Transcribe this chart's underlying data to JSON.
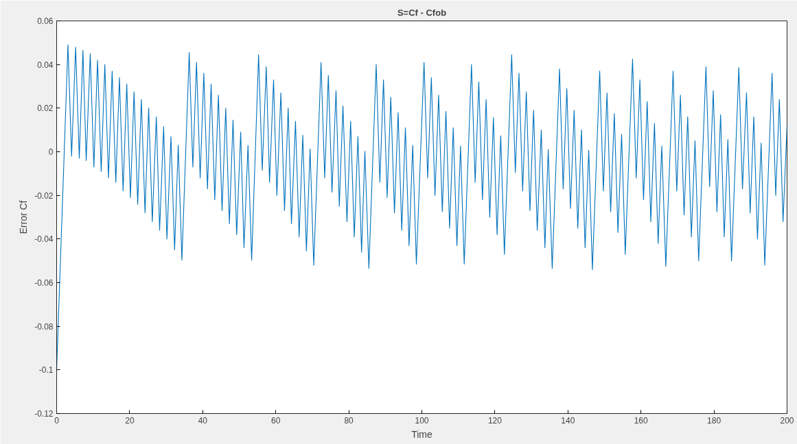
{
  "chart_data": {
    "type": "line",
    "title": "S=Cf - Cfob",
    "xlabel": "Time",
    "ylabel": "Error Cf",
    "xlim": [
      0,
      200
    ],
    "xticks": [
      0,
      20,
      40,
      60,
      80,
      100,
      120,
      140,
      160,
      180,
      200
    ],
    "ylim": [
      -0.12,
      0.06
    ],
    "yticks": [
      -0.12,
      -0.1,
      -0.08,
      -0.06,
      -0.04,
      -0.02,
      0,
      0.02,
      0.04,
      0.06
    ],
    "grid": false,
    "marker": "none",
    "line_style": "solid",
    "series": [
      {
        "color": "#0072bd",
        "x": [
          0,
          3.1,
          4.1,
          5.2,
          6.2,
          7.2,
          8.1,
          9.2,
          10.2,
          11.2,
          12.2,
          13.2,
          14.2,
          15.2,
          16.2,
          17.2,
          18.2,
          19.2,
          20.2,
          21.2,
          22.2,
          23.2,
          24.2,
          25.2,
          26.2,
          27.3,
          28.2,
          29.3,
          30.2,
          31.3,
          32.3,
          33.3,
          34.3,
          36.3,
          37.3,
          38.3,
          39.3,
          40.3,
          41.3,
          42.3,
          43.3,
          44.3,
          45.3,
          46.3,
          47.3,
          48.3,
          49.3,
          50.4,
          51.3,
          52.4,
          53.4,
          55.3,
          56.3,
          57.4,
          58.3,
          59.4,
          60.3,
          61.4,
          62.4,
          63.4,
          64.3,
          65.4,
          66.4,
          67.4,
          68.4,
          69.4,
          70.4,
          72.4,
          73.4,
          74.4,
          75.4,
          76.5,
          77.4,
          78.4,
          79.5,
          80.5,
          81.5,
          82.5,
          83.5,
          84.4,
          85.5,
          87.5,
          88.5,
          89.5,
          90.5,
          91.5,
          92.5,
          93.5,
          94.5,
          95.5,
          96.5,
          97.5,
          98.5,
          100.6,
          101.6,
          102.6,
          103.6,
          104.6,
          105.6,
          106.6,
          107.6,
          108.6,
          109.6,
          110.6,
          111.6,
          113.6,
          114.6,
          115.6,
          116.6,
          117.6,
          118.6,
          119.6,
          120.6,
          121.6,
          122.6,
          124.6,
          125.6,
          126.6,
          127.6,
          128.6,
          129.6,
          130.6,
          131.6,
          132.7,
          133.7,
          134.6,
          135.7,
          137.7,
          138.7,
          139.7,
          140.7,
          141.7,
          142.7,
          143.7,
          144.7,
          145.7,
          146.7,
          148.7,
          149.7,
          150.7,
          151.7,
          152.7,
          153.7,
          154.7,
          155.7,
          157.7,
          158.7,
          159.7,
          160.7,
          161.7,
          162.7,
          163.7,
          164.7,
          165.7,
          166.8,
          168.8,
          169.8,
          170.8,
          171.8,
          172.8,
          173.8,
          174.8,
          175.8,
          177.8,
          178.8,
          179.8,
          180.8,
          181.8,
          182.8,
          183.8,
          184.8,
          186.8,
          187.8,
          188.9,
          189.9,
          190.9,
          191.9,
          192.9,
          193.9,
          195.9,
          196.9,
          197.9,
          198.9,
          200
        ],
        "values": [
          -0.1,
          0.049,
          -0.002,
          0.048,
          -0.003,
          0.0465,
          -0.004,
          0.045,
          -0.007,
          0.042,
          -0.009,
          0.04,
          -0.012,
          0.037,
          -0.014,
          0.034,
          -0.018,
          0.031,
          -0.021,
          0.0275,
          -0.024,
          0.024,
          -0.028,
          0.02,
          -0.032,
          0.016,
          -0.036,
          0.0115,
          -0.04,
          0.007,
          -0.045,
          0.003,
          -0.0497,
          0.0455,
          -0.007,
          0.041,
          -0.012,
          0.036,
          -0.017,
          0.031,
          -0.022,
          0.026,
          -0.027,
          0.02,
          -0.033,
          0.0145,
          -0.038,
          0.009,
          -0.044,
          0.003,
          -0.0497,
          0.0445,
          -0.0085,
          0.039,
          -0.014,
          0.033,
          -0.02,
          0.027,
          -0.027,
          0.02,
          -0.033,
          0.014,
          -0.039,
          0.0076,
          -0.0455,
          0.0013,
          -0.052,
          0.041,
          -0.012,
          0.035,
          -0.0185,
          0.028,
          -0.025,
          0.021,
          -0.032,
          0.014,
          -0.039,
          0.007,
          -0.046,
          0.0002,
          -0.0535,
          0.04,
          -0.014,
          0.033,
          -0.021,
          0.025,
          -0.028,
          0.018,
          -0.036,
          0.011,
          -0.043,
          0.003,
          -0.0515,
          0.041,
          -0.012,
          0.034,
          -0.02,
          0.026,
          -0.0275,
          0.0185,
          -0.035,
          0.011,
          -0.043,
          0.0026,
          -0.0515,
          0.04,
          -0.014,
          0.032,
          -0.022,
          0.024,
          -0.03,
          0.0156,
          -0.038,
          0.0074,
          -0.047,
          0.0445,
          -0.0095,
          0.036,
          -0.018,
          0.0275,
          -0.027,
          0.019,
          -0.036,
          0.01,
          -0.044,
          0.001,
          -0.0535,
          0.038,
          -0.017,
          0.029,
          -0.026,
          0.019,
          -0.035,
          0.01,
          -0.044,
          0.0007,
          -0.054,
          0.037,
          -0.018,
          0.027,
          -0.0275,
          0.0175,
          -0.037,
          0.008,
          -0.047,
          0.0425,
          -0.012,
          0.033,
          -0.022,
          0.023,
          -0.032,
          0.013,
          -0.042,
          0.0026,
          -0.0525,
          0.037,
          -0.018,
          0.026,
          -0.029,
          0.016,
          -0.039,
          0.005,
          -0.05,
          0.039,
          -0.016,
          0.028,
          -0.0275,
          0.017,
          -0.039,
          0.0056,
          -0.05,
          0.0386,
          -0.017,
          0.027,
          -0.028,
          0.016,
          -0.04,
          0.004,
          -0.052,
          0.036,
          -0.02,
          0.024,
          -0.032,
          0.012
        ]
      }
    ]
  }
}
